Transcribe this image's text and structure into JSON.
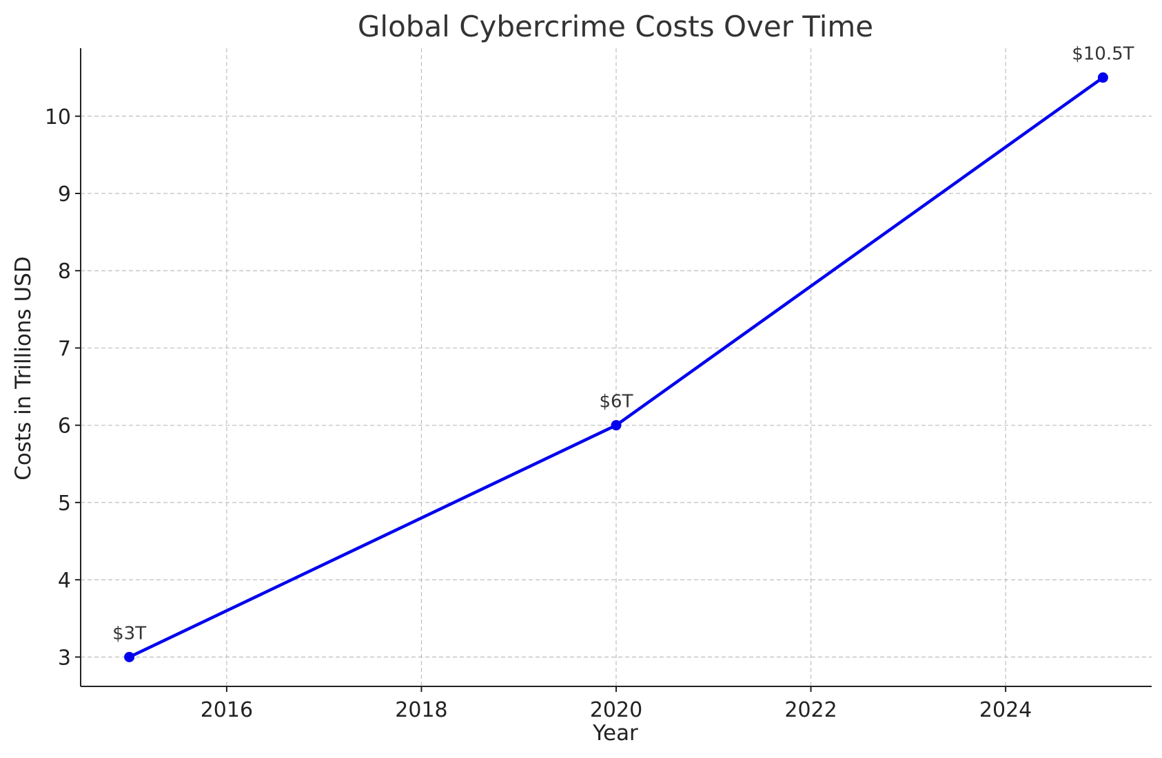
{
  "chart_data": {
    "type": "line",
    "title": "Global Cybercrime Costs Over Time",
    "xlabel": "Year",
    "ylabel": "Costs in Trillions USD",
    "xlim": [
      2014.5,
      2025.5
    ],
    "ylim": [
      2.62,
      10.88
    ],
    "x_ticks": [
      2016,
      2018,
      2020,
      2022,
      2024
    ],
    "y_ticks": [
      3,
      4,
      5,
      6,
      7,
      8,
      9,
      10
    ],
    "grid": true,
    "series": [
      {
        "x": [
          2015,
          2020,
          2025
        ],
        "values": [
          3,
          6,
          10.5
        ],
        "color": "#0000ee",
        "data_labels": [
          "$3T",
          "$6T",
          "$10.5T"
        ]
      }
    ]
  }
}
